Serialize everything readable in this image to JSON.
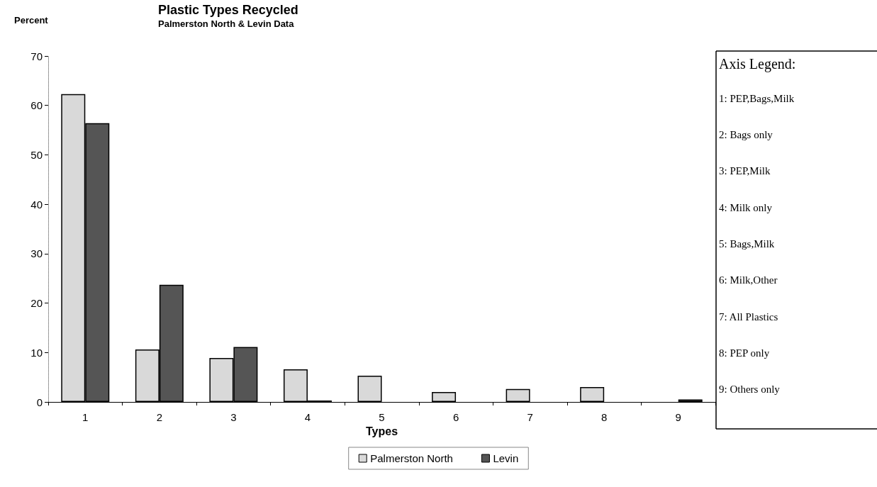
{
  "chart_data": {
    "type": "bar",
    "title": "Plastic Types Recycled",
    "subtitle": "Palmerston North & Levin Data",
    "xlabel": "Types",
    "ylabel": "Percent",
    "categories": [
      "1",
      "2",
      "3",
      "4",
      "5",
      "6",
      "7",
      "8",
      "9"
    ],
    "series": [
      {
        "name": "Palmerston North",
        "color": "#d9d9d9",
        "values": [
          62.3,
          10.6,
          8.9,
          6.6,
          5.3,
          2.0,
          2.6,
          3.0,
          0
        ]
      },
      {
        "name": "Levin",
        "color": "#555555",
        "values": [
          56.4,
          23.7,
          11.1,
          0.3,
          0,
          0,
          0,
          0,
          0.5
        ]
      }
    ],
    "ylim": [
      0,
      70
    ],
    "yticks": [
      0,
      10,
      20,
      30,
      40,
      50,
      60,
      70
    ],
    "grid": false,
    "legend": "bottom",
    "annotations": [
      "Axis Legend:",
      "1: PEP,Bags,Milk",
      "2: Bags only",
      "3: PEP,Milk",
      "4: Milk only",
      "5: Bags,Milk",
      "6: Milk,Other",
      "7: All Plastics",
      "8: PEP only",
      "9: Others only"
    ]
  }
}
